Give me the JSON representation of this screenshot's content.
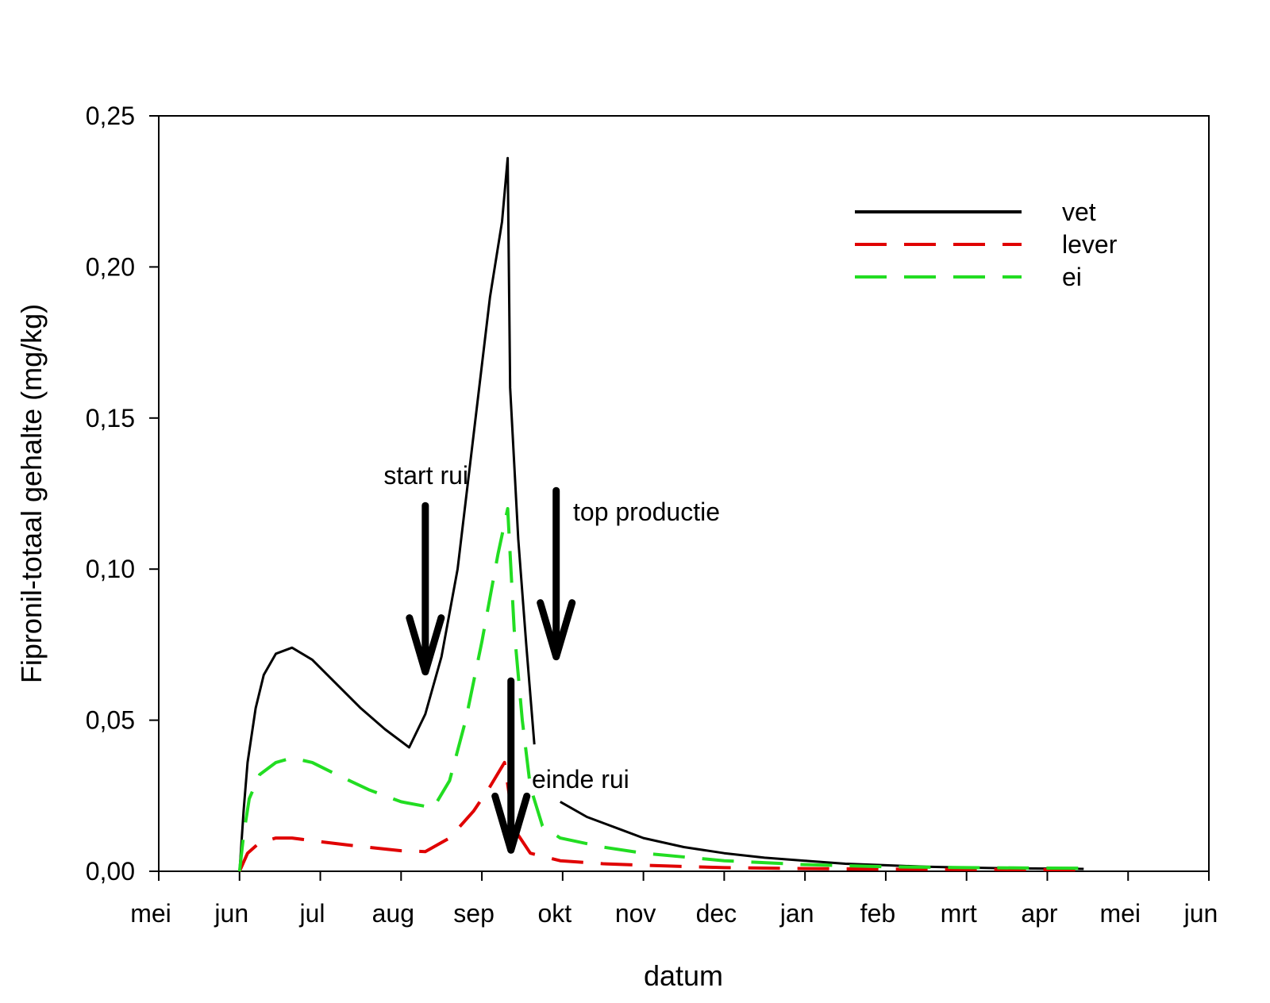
{
  "chart_data": {
    "type": "line",
    "xlabel": "datum",
    "ylabel": "Fipronil-totaal gehalte (mg/kg)",
    "ylim": [
      0,
      0.25
    ],
    "x_ticks": [
      "mei",
      "jun",
      "jul",
      "aug",
      "sep",
      "okt",
      "nov",
      "dec",
      "jan",
      "feb",
      "mrt",
      "apr",
      "mei",
      "jun"
    ],
    "y_ticks": [
      "0,00",
      "0,05",
      "0,10",
      "0,15",
      "0,20",
      "0,25"
    ],
    "grid": false,
    "legend_position": "top-right",
    "series": [
      {
        "name": "vet",
        "color": "#000000",
        "dash": "solid",
        "segments": [
          [
            [
              1.0,
              0.0
            ],
            [
              1.05,
              0.02
            ],
            [
              1.1,
              0.036
            ],
            [
              1.2,
              0.054
            ],
            [
              1.3,
              0.065
            ],
            [
              1.45,
              0.072
            ],
            [
              1.65,
              0.074
            ],
            [
              1.9,
              0.07
            ],
            [
              2.2,
              0.062
            ],
            [
              2.5,
              0.054
            ],
            [
              2.8,
              0.047
            ],
            [
              3.1,
              0.041
            ],
            [
              3.3,
              0.052
            ],
            [
              3.5,
              0.071
            ],
            [
              3.7,
              0.1
            ],
            [
              3.9,
              0.145
            ],
            [
              4.1,
              0.19
            ],
            [
              4.25,
              0.215
            ],
            [
              4.32,
              0.236
            ],
            [
              4.35,
              0.16
            ],
            [
              4.45,
              0.11
            ],
            [
              4.55,
              0.075
            ],
            [
              4.65,
              0.042
            ]
          ],
          [
            [
              4.97,
              0.023
            ],
            [
              5.3,
              0.018
            ],
            [
              5.7,
              0.014
            ],
            [
              6.0,
              0.011
            ],
            [
              6.5,
              0.008
            ],
            [
              7.0,
              0.006
            ],
            [
              7.5,
              0.0045
            ],
            [
              8.0,
              0.0035
            ],
            [
              8.5,
              0.0025
            ],
            [
              9.0,
              0.002
            ],
            [
              9.5,
              0.0015
            ],
            [
              10.0,
              0.0012
            ],
            [
              10.5,
              0.001
            ],
            [
              11.0,
              0.0009
            ],
            [
              11.45,
              0.0008
            ]
          ]
        ]
      },
      {
        "name": "lever",
        "color": "#e00000",
        "dash": "long-dash",
        "segments": [
          [
            [
              1.0,
              0.0
            ],
            [
              1.1,
              0.006
            ],
            [
              1.25,
              0.0095
            ],
            [
              1.45,
              0.011
            ],
            [
              1.65,
              0.011
            ],
            [
              2.0,
              0.0098
            ],
            [
              2.5,
              0.0082
            ],
            [
              3.0,
              0.0068
            ],
            [
              3.3,
              0.0065
            ],
            [
              3.6,
              0.011
            ],
            [
              3.9,
              0.02
            ],
            [
              4.1,
              0.028
            ],
            [
              4.28,
              0.036
            ],
            [
              4.4,
              0.014
            ],
            [
              4.6,
              0.006
            ],
            [
              4.97,
              0.0035
            ],
            [
              5.5,
              0.0025
            ],
            [
              6.0,
              0.002
            ],
            [
              7.0,
              0.0012
            ],
            [
              8.0,
              0.0009
            ],
            [
              9.0,
              0.0007
            ],
            [
              10.0,
              0.0006
            ],
            [
              11.45,
              0.0005
            ]
          ]
        ]
      },
      {
        "name": "ei",
        "color": "#22dd22",
        "dash": "long-dash",
        "segments": [
          [
            [
              1.0,
              0.0
            ],
            [
              1.05,
              0.012
            ],
            [
              1.12,
              0.024
            ],
            [
              1.25,
              0.032
            ],
            [
              1.45,
              0.036
            ],
            [
              1.65,
              0.0375
            ],
            [
              1.9,
              0.036
            ],
            [
              2.2,
              0.032
            ],
            [
              2.6,
              0.027
            ],
            [
              3.0,
              0.023
            ],
            [
              3.4,
              0.021
            ],
            [
              3.6,
              0.03
            ],
            [
              3.8,
              0.05
            ],
            [
              4.0,
              0.076
            ],
            [
              4.2,
              0.105
            ],
            [
              4.32,
              0.12
            ],
            [
              4.4,
              0.08
            ],
            [
              4.5,
              0.05
            ],
            [
              4.6,
              0.028
            ],
            [
              4.75,
              0.015
            ],
            [
              4.97,
              0.011
            ],
            [
              5.5,
              0.008
            ],
            [
              6.0,
              0.006
            ],
            [
              7.0,
              0.0035
            ],
            [
              8.0,
              0.0022
            ],
            [
              9.0,
              0.0015
            ],
            [
              10.0,
              0.0012
            ],
            [
              11.45,
              0.001
            ]
          ]
        ]
      }
    ],
    "annotations": [
      {
        "text": "start rui",
        "arrow_x": 3.3,
        "arrow_y_from": 0.121,
        "arrow_y_to": 0.066
      },
      {
        "text": "top productie",
        "arrow_x": 4.92,
        "arrow_y_from": 0.126,
        "arrow_y_to": 0.071
      },
      {
        "text": "einde rui",
        "arrow_x": 4.36,
        "arrow_y_from": 0.063,
        "arrow_y_to": 0.007
      }
    ]
  }
}
